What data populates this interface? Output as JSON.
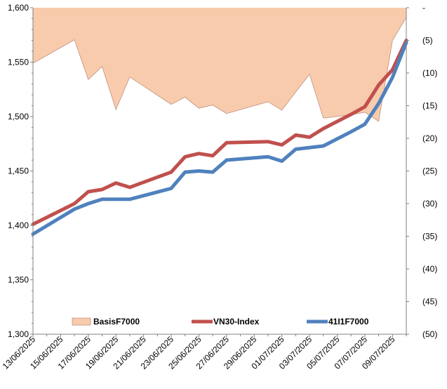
{
  "chart_data": {
    "type": "line",
    "x": [
      "13/06/2025",
      "14/06/2025",
      "15/06/2025",
      "16/06/2025",
      "17/06/2025",
      "18/06/2025",
      "19/06/2025",
      "20/06/2025",
      "21/06/2025",
      "22/06/2025",
      "23/06/2025",
      "24/06/2025",
      "25/06/2025",
      "26/06/2025",
      "27/06/2025",
      "28/06/2025",
      "29/06/2025",
      "30/06/2025",
      "01/07/2025",
      "02/07/2025",
      "03/07/2025",
      "04/07/2025",
      "05/07/2025",
      "06/07/2025",
      "07/07/2025",
      "08/07/2025",
      "09/07/2025",
      "10/07/2025"
    ],
    "x_tick_labels": [
      "13/06/2025",
      "15/06/2025",
      "17/06/2025",
      "19/06/2025",
      "21/06/2025",
      "23/06/2025",
      "25/06/2025",
      "27/06/2025",
      "29/06/2025",
      "01/07/2025",
      "03/07/2025",
      "05/07/2025",
      "07/07/2025",
      "09/07/2025"
    ],
    "left_axis": {
      "ylim": [
        1300,
        1600
      ],
      "ticks": [
        "1,300",
        "1,350",
        "1,400",
        "1,450",
        "1,500",
        "1,550",
        "1,600"
      ]
    },
    "right_axis": {
      "ylim": [
        -50,
        0
      ],
      "reversed": true,
      "ticks": [
        "(50)",
        "(45)",
        "(40)",
        "(35)",
        "(30)",
        "(25)",
        "(20)",
        "(15)",
        "(10)",
        "(5)",
        "-"
      ]
    },
    "series": [
      {
        "name": "BasisF7000",
        "kind": "area",
        "axis": "right",
        "color": "#f8cbad",
        "edge_color": "#c09080",
        "points": [
          [
            "13/06/2025",
            -8.5
          ],
          [
            "16/06/2025",
            -4.9
          ],
          [
            "17/06/2025",
            -11.0
          ],
          [
            "18/06/2025",
            -9.0
          ],
          [
            "19/06/2025",
            -15.6
          ],
          [
            "20/06/2025",
            -10.6
          ],
          [
            "23/06/2025",
            -14.8
          ],
          [
            "24/06/2025",
            -13.7
          ],
          [
            "25/06/2025",
            -15.4
          ],
          [
            "26/06/2025",
            -14.9
          ],
          [
            "27/06/2025",
            -16.2
          ],
          [
            "30/06/2025",
            -14.4
          ],
          [
            "01/07/2025",
            -15.7
          ],
          [
            "02/07/2025",
            -12.9
          ],
          [
            "03/07/2025",
            -10.2
          ],
          [
            "04/07/2025",
            -16.9
          ],
          [
            "06/07/2025",
            -16.4
          ],
          [
            "07/07/2025",
            -16.0
          ],
          [
            "08/07/2025",
            -17.4
          ],
          [
            "09/07/2025",
            -5.0
          ],
          [
            "10/07/2025",
            -1.5
          ],
          [
            "10/07/2025",
            0
          ]
        ]
      },
      {
        "name": "VN30-Index",
        "kind": "line",
        "axis": "left",
        "color": "#c0504d",
        "points": [
          [
            "13/06/2025",
            1401
          ],
          [
            "16/06/2025",
            1420
          ],
          [
            "17/06/2025",
            1431
          ],
          [
            "18/06/2025",
            1433
          ],
          [
            "19/06/2025",
            1439
          ],
          [
            "20/06/2025",
            1435
          ],
          [
            "23/06/2025",
            1449
          ],
          [
            "24/06/2025",
            1463
          ],
          [
            "25/06/2025",
            1466
          ],
          [
            "26/06/2025",
            1464
          ],
          [
            "27/06/2025",
            1476
          ],
          [
            "30/06/2025",
            1477
          ],
          [
            "01/07/2025",
            1474
          ],
          [
            "02/07/2025",
            1483
          ],
          [
            "03/07/2025",
            1481
          ],
          [
            "04/07/2025",
            1489
          ],
          [
            "06/07/2025",
            1502
          ],
          [
            "07/07/2025",
            1509
          ],
          [
            "08/07/2025",
            1529
          ],
          [
            "09/07/2025",
            1543
          ],
          [
            "10/07/2025",
            1570
          ]
        ]
      },
      {
        "name": "41I1F7000",
        "kind": "line",
        "axis": "left",
        "color": "#4f81bd",
        "points": [
          [
            "13/06/2025",
            1392
          ],
          [
            "16/06/2025",
            1415
          ],
          [
            "17/06/2025",
            1420
          ],
          [
            "18/06/2025",
            1424
          ],
          [
            "20/06/2025",
            1424
          ],
          [
            "23/06/2025",
            1434
          ],
          [
            "24/06/2025",
            1449
          ],
          [
            "25/06/2025",
            1450
          ],
          [
            "26/06/2025",
            1449
          ],
          [
            "27/06/2025",
            1460
          ],
          [
            "30/06/2025",
            1463
          ],
          [
            "01/07/2025",
            1459
          ],
          [
            "02/07/2025",
            1470
          ],
          [
            "04/07/2025",
            1473
          ],
          [
            "06/07/2025",
            1486
          ],
          [
            "07/07/2025",
            1493
          ],
          [
            "08/07/2025",
            1512
          ],
          [
            "09/07/2025",
            1536
          ],
          [
            "10/07/2025",
            1568
          ]
        ]
      }
    ],
    "legend": {
      "placement": "bottom-inside"
    },
    "grid": false
  }
}
